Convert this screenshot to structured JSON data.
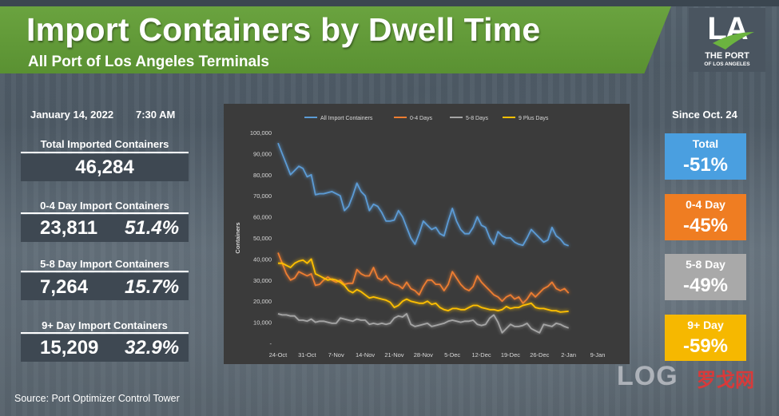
{
  "header": {
    "title": "Import Containers by Dwell Time",
    "subtitle": "All Port of Los Angeles Terminals"
  },
  "logo": {
    "mark": "LA",
    "line1": "THE PORT",
    "line2": "OF LOS ANGELES"
  },
  "meta": {
    "date": "January 14, 2022",
    "time": "7:30 AM"
  },
  "stats": {
    "total": {
      "label": "Total Imported Containers",
      "value": "46,284"
    },
    "d04": {
      "label": "0-4 Day Import Containers",
      "value": "23,811",
      "pct": "51.4%"
    },
    "d58": {
      "label": "5-8 Day Import Containers",
      "value": "7,264",
      "pct": "15.7%"
    },
    "d9p": {
      "label": "9+ Day Import Containers",
      "value": "15,209",
      "pct": "32.9%"
    }
  },
  "since": {
    "title": "Since Oct. 24",
    "cards": [
      {
        "label": "Total",
        "value": "-51%",
        "color": "#4a9fe0"
      },
      {
        "label": "0-4 Day",
        "value": "-45%",
        "color": "#ef7d22"
      },
      {
        "label": "5-8 Day",
        "value": "-49%",
        "color": "#a9a9a9"
      },
      {
        "label": "9+ Day",
        "value": "-59%",
        "color": "#f6b800"
      }
    ]
  },
  "source": "Source: Port Optimizer Control Tower",
  "watermark": {
    "log": "LOG",
    "cn": "罗戈网"
  },
  "chart_data": {
    "type": "line",
    "title": "",
    "xlabel": "",
    "ylabel": "Containers",
    "ylim": [
      0,
      100000
    ],
    "y_ticks": [
      0,
      10000,
      20000,
      30000,
      40000,
      50000,
      60000,
      70000,
      80000,
      90000,
      100000
    ],
    "y_tick_labels": [
      "-",
      "10,000",
      "20,000",
      "30,000",
      "40,000",
      "50,000",
      "60,000",
      "70,000",
      "80,000",
      "90,000",
      "100,000"
    ],
    "x_tick_labels": [
      "24-Oct",
      "31-Oct",
      "7-Nov",
      "14-Nov",
      "21-Nov",
      "28-Nov",
      "5-Dec",
      "12-Dec",
      "19-Dec",
      "26-Dec",
      "2-Jan",
      "9-Jan"
    ],
    "x_range": [
      0,
      82
    ],
    "legend_position": "top",
    "series": [
      {
        "name": "All Import Containers",
        "color": "#5b9bd5",
        "values": [
          95000,
          90000,
          85000,
          80000,
          82000,
          84000,
          83000,
          79000,
          80000,
          70500,
          71000,
          71000,
          71500,
          72000,
          71000,
          70000,
          63000,
          65000,
          70000,
          76000,
          72000,
          70000,
          63000,
          66000,
          65000,
          62000,
          58000,
          58000,
          58500,
          63000,
          60000,
          55000,
          50000,
          47000,
          52000,
          58000,
          56000,
          54000,
          55000,
          52000,
          51000,
          58000,
          64000,
          58000,
          54000,
          52000,
          52000,
          55000,
          60000,
          56000,
          55000,
          50000,
          47000,
          53000,
          51000,
          50000,
          50000,
          48000,
          47000,
          46500,
          50000,
          54000,
          52000,
          50000,
          48000,
          49000,
          55000,
          51000,
          49500,
          47000,
          46284
        ]
      },
      {
        "name": "0-4 Days",
        "color": "#ed7d31",
        "values": [
          43000,
          38000,
          33000,
          30000,
          31000,
          34000,
          33000,
          32000,
          33000,
          27500,
          28000,
          30000,
          31500,
          30000,
          29000,
          30000,
          28000,
          28500,
          28500,
          35000,
          33000,
          32000,
          32000,
          36000,
          31000,
          30000,
          32000,
          29000,
          28000,
          27500,
          26000,
          29000,
          26000,
          25000,
          23000,
          27000,
          30000,
          30000,
          28000,
          28000,
          25000,
          28000,
          34000,
          31000,
          28000,
          26000,
          25000,
          27000,
          32000,
          29000,
          27000,
          25000,
          23000,
          22000,
          20000,
          22000,
          23000,
          21000,
          22000,
          19000,
          21000,
          24000,
          22000,
          24000,
          26000,
          27000,
          29000,
          26000,
          25000,
          26000,
          23811
        ]
      },
      {
        "name": "5-8 Days",
        "color": "#a5a5a5",
        "values": [
          14000,
          13500,
          13500,
          13000,
          13000,
          11000,
          11000,
          10500,
          11500,
          10000,
          10500,
          10500,
          10000,
          9500,
          9500,
          12000,
          11500,
          11000,
          10500,
          11500,
          11000,
          11000,
          9000,
          9500,
          9000,
          9500,
          9000,
          9500,
          12000,
          13000,
          12500,
          14000,
          9000,
          8000,
          8500,
          9000,
          9500,
          8000,
          8500,
          9000,
          9500,
          10500,
          11000,
          10500,
          10000,
          10500,
          10500,
          11000,
          9000,
          8500,
          9000,
          12000,
          13500,
          10000,
          5000,
          7000,
          9000,
          8000,
          8000,
          8500,
          9500,
          7000,
          6000,
          5000,
          9000,
          8500,
          8000,
          9500,
          9000,
          8000,
          7264
        ]
      },
      {
        "name": "9 Plus Days",
        "color": "#ffc000",
        "values": [
          38000,
          38000,
          37000,
          36000,
          38000,
          39000,
          39500,
          38000,
          40000,
          33000,
          32000,
          31000,
          30000,
          30500,
          30000,
          29000,
          27500,
          25000,
          24000,
          25500,
          24500,
          23000,
          21500,
          22000,
          21500,
          21000,
          20500,
          19500,
          17000,
          18000,
          20000,
          21000,
          20000,
          19500,
          19000,
          19000,
          20000,
          18500,
          19000,
          17000,
          16000,
          15500,
          16500,
          16500,
          16000,
          16000,
          17000,
          18000,
          18000,
          17000,
          16500,
          16000,
          16000,
          15500,
          16000,
          17500,
          16500,
          17000,
          17000,
          18000,
          18500,
          19000,
          17000,
          16500,
          16500,
          16000,
          15500,
          15500,
          14800,
          15000,
          15209
        ]
      }
    ]
  }
}
